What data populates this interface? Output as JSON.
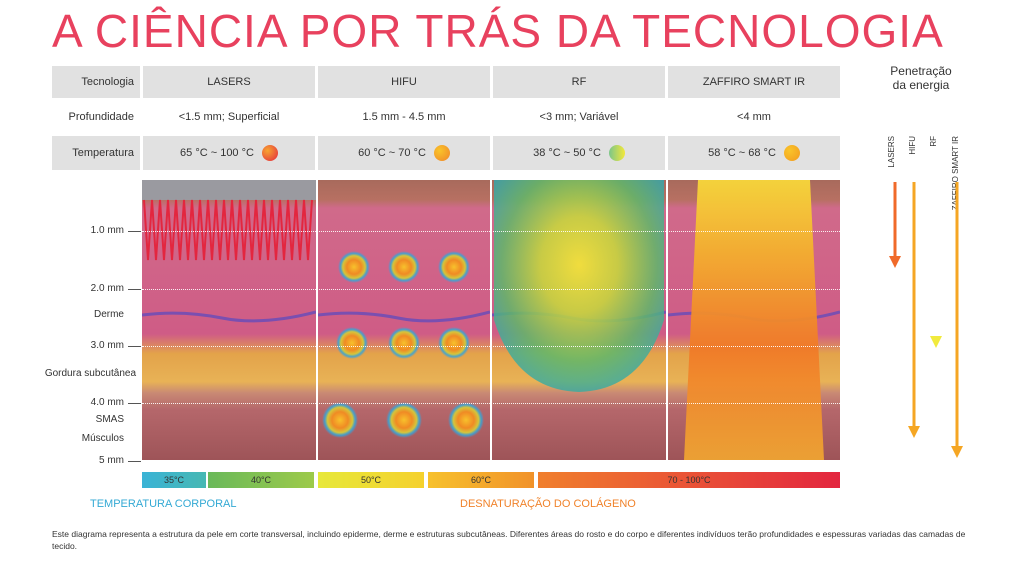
{
  "title": "A CIÊNCIA POR TRÁS DA TECNOLOGIA",
  "table": {
    "row_labels": [
      "Tecnologia",
      "Profundidade",
      "Temperatura"
    ],
    "columns": [
      {
        "name": "LASERS",
        "depth": "<1.5 mm; Superficial",
        "temp": "65 °C ~ 100 °C",
        "dot_colors": [
          "#f7a531",
          "#e3263f"
        ]
      },
      {
        "name": "HIFU",
        "depth": "1.5 mm - 4.5 mm",
        "temp": "60 °C ~ 70 °C",
        "dot_colors": [
          "#f9c42a",
          "#f0852a"
        ]
      },
      {
        "name": "RF",
        "depth": "<3 mm; Variável",
        "temp": "38 °C ~ 50 °C",
        "dot_colors": [
          "#f3e83a",
          "#7cc68a"
        ]
      },
      {
        "name": "ZAFFIRO SMART IR",
        "depth": "<4 mm",
        "temp": "58 °C ~ 68 °C",
        "dot_colors": [
          "#f9c42a",
          "#f29a1f"
        ]
      }
    ]
  },
  "depth_labels": [
    "1.0 mm",
    "2.0 mm",
    "3.0 mm",
    "4.0 mm",
    "5 mm"
  ],
  "layer_labels": [
    "Derme",
    "Gordura subcutânea",
    "SMAS",
    "Músculos"
  ],
  "penetration": {
    "title_line1": "Penetração",
    "title_line2": "da energia",
    "arrows": [
      {
        "label": "LASERS",
        "color": "#f06a2a",
        "depth_fraction": 0.33
      },
      {
        "label": "HIFU",
        "color": "#f5a623",
        "depth_fraction": 0.93
      },
      {
        "label": "RF",
        "color": "#8fc99a",
        "end_color": "#f1ea3d",
        "depth_fraction": 0.61
      },
      {
        "label": "ZAFFIRO SMART IR",
        "color": "#f5a623",
        "depth_fraction": 0.97
      }
    ]
  },
  "temperature_scale": [
    {
      "label": "35°C",
      "color_from": "#3ab3d6",
      "color_to": "#47b8b3"
    },
    {
      "label": "40°C",
      "color_from": "#6ab95a",
      "color_to": "#9dca4a"
    },
    {
      "label": "50°C",
      "color_from": "#e7e83a",
      "color_to": "#f5d12e"
    },
    {
      "label": "60°C",
      "color_from": "#f7c12c",
      "color_to": "#f1922a"
    },
    {
      "label": "70 - 100°C",
      "color_from": "#f07f2d",
      "color_to": "#e3263f"
    }
  ],
  "legend": {
    "body_temp": "TEMPERATURA CORPORAL",
    "body_temp_color": "#33a9d4",
    "denaturation": "DESNATURAÇÃO DO COLÁGENO",
    "denaturation_color": "#f0822a"
  },
  "footer": "Este diagrama representa a estrutura da pele em corte transversal, incluindo epiderme, derme e estruturas subcutâneas. Diferentes áreas do rosto e do corpo e diferentes indivíduos terão profundidades e espessuras variadas das camadas de tecido.",
  "colors": {
    "title": "#e8415e",
    "table_gray": "#e1e1e1",
    "epidermis": "#a86a5c",
    "dermis": "#cf5c86",
    "fat": "#e2a84a",
    "muscle": "#b5676b",
    "nerve": "#7a4fb0"
  }
}
